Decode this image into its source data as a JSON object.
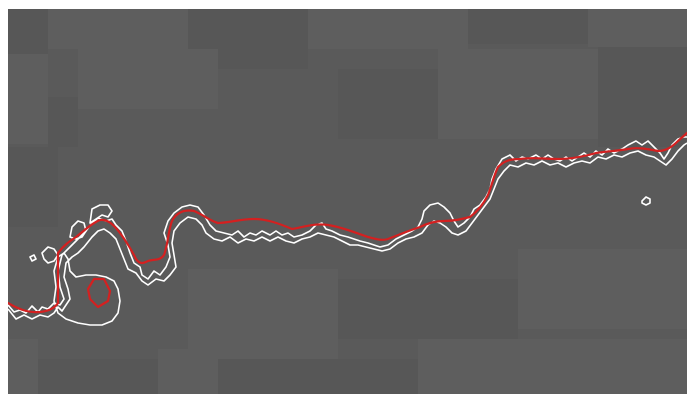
{
  "colors": {
    "background": "#5a5a5a",
    "tile_light": "#5e5e5e",
    "tile_dark": "#575757",
    "prediction_line": "#d42020",
    "contour_line": "#ffffff",
    "frame": "#ffffff"
  },
  "icons": {
    "contour": "white-contour-icon",
    "trace": "red-trace-icon"
  }
}
